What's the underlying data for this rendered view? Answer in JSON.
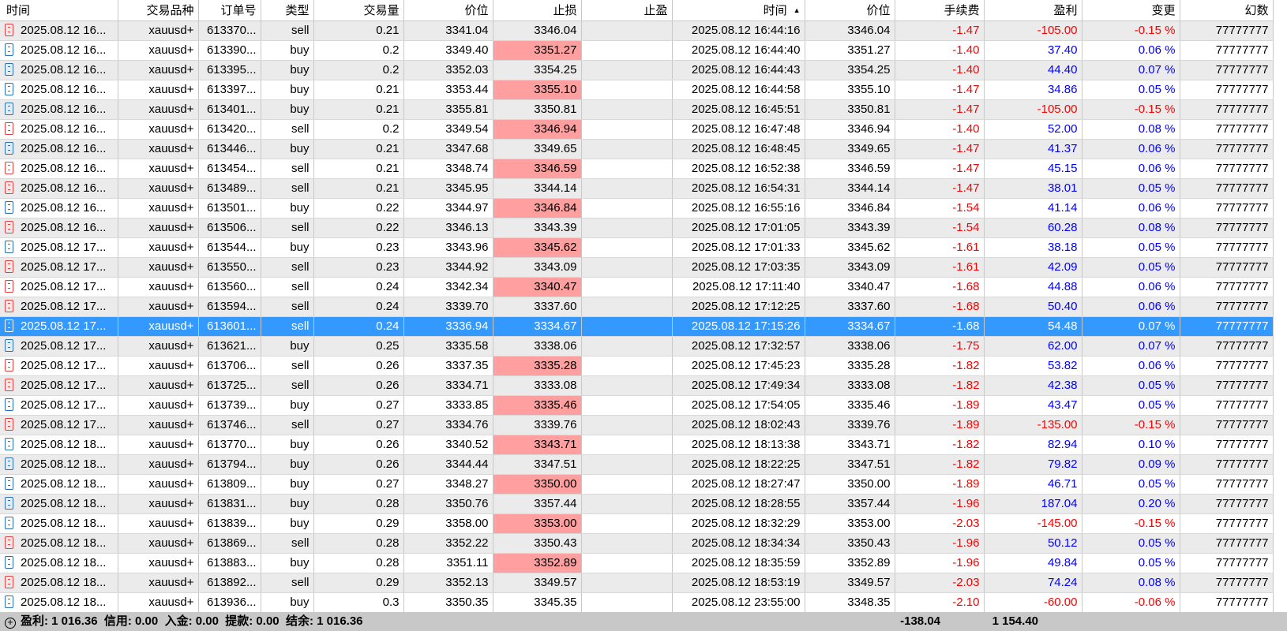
{
  "columns": [
    "时间",
    "交易品种",
    "订单号",
    "类型",
    "交易量",
    "价位",
    "止损",
    "止盈",
    "时间",
    "价位",
    "手续费",
    "盈利",
    "变更",
    "幻数"
  ],
  "sort_indicator": "▲",
  "colors": {
    "stop_loss_bg": "#ff9f9f",
    "selected_bg": "#3399ff",
    "negative": "#ff0000",
    "positive": "#0000ff",
    "alt_row": "#ebebeb"
  },
  "selected_row": 15,
  "rows": [
    [
      "2025.08.12 16...",
      "xauusd+",
      "613370...",
      "sell",
      "0.21",
      "3341.04",
      "3346.04",
      "",
      "2025.08.12 16:44:16",
      "3346.04",
      "-1.47",
      "-105.00",
      "-0.15 %",
      "77777777"
    ],
    [
      "2025.08.12 16...",
      "xauusd+",
      "613390...",
      "buy",
      "0.2",
      "3349.40",
      "3351.27",
      "",
      "2025.08.12 16:44:40",
      "3351.27",
      "-1.40",
      "37.40",
      "0.06 %",
      "77777777"
    ],
    [
      "2025.08.12 16...",
      "xauusd+",
      "613395...",
      "buy",
      "0.2",
      "3352.03",
      "3354.25",
      "",
      "2025.08.12 16:44:43",
      "3354.25",
      "-1.40",
      "44.40",
      "0.07 %",
      "77777777"
    ],
    [
      "2025.08.12 16...",
      "xauusd+",
      "613397...",
      "buy",
      "0.21",
      "3353.44",
      "3355.10",
      "",
      "2025.08.12 16:44:58",
      "3355.10",
      "-1.47",
      "34.86",
      "0.05 %",
      "77777777"
    ],
    [
      "2025.08.12 16...",
      "xauusd+",
      "613401...",
      "buy",
      "0.21",
      "3355.81",
      "3350.81",
      "",
      "2025.08.12 16:45:51",
      "3350.81",
      "-1.47",
      "-105.00",
      "-0.15 %",
      "77777777"
    ],
    [
      "2025.08.12 16...",
      "xauusd+",
      "613420...",
      "sell",
      "0.2",
      "3349.54",
      "3346.94",
      "",
      "2025.08.12 16:47:48",
      "3346.94",
      "-1.40",
      "52.00",
      "0.08 %",
      "77777777"
    ],
    [
      "2025.08.12 16...",
      "xauusd+",
      "613446...",
      "buy",
      "0.21",
      "3347.68",
      "3349.65",
      "",
      "2025.08.12 16:48:45",
      "3349.65",
      "-1.47",
      "41.37",
      "0.06 %",
      "77777777"
    ],
    [
      "2025.08.12 16...",
      "xauusd+",
      "613454...",
      "sell",
      "0.21",
      "3348.74",
      "3346.59",
      "",
      "2025.08.12 16:52:38",
      "3346.59",
      "-1.47",
      "45.15",
      "0.06 %",
      "77777777"
    ],
    [
      "2025.08.12 16...",
      "xauusd+",
      "613489...",
      "sell",
      "0.21",
      "3345.95",
      "3344.14",
      "",
      "2025.08.12 16:54:31",
      "3344.14",
      "-1.47",
      "38.01",
      "0.05 %",
      "77777777"
    ],
    [
      "2025.08.12 16...",
      "xauusd+",
      "613501...",
      "buy",
      "0.22",
      "3344.97",
      "3346.84",
      "",
      "2025.08.12 16:55:16",
      "3346.84",
      "-1.54",
      "41.14",
      "0.06 %",
      "77777777"
    ],
    [
      "2025.08.12 16...",
      "xauusd+",
      "613506...",
      "sell",
      "0.22",
      "3346.13",
      "3343.39",
      "",
      "2025.08.12 17:01:05",
      "3343.39",
      "-1.54",
      "60.28",
      "0.08 %",
      "77777777"
    ],
    [
      "2025.08.12 17...",
      "xauusd+",
      "613544...",
      "buy",
      "0.23",
      "3343.96",
      "3345.62",
      "",
      "2025.08.12 17:01:33",
      "3345.62",
      "-1.61",
      "38.18",
      "0.05 %",
      "77777777"
    ],
    [
      "2025.08.12 17...",
      "xauusd+",
      "613550...",
      "sell",
      "0.23",
      "3344.92",
      "3343.09",
      "",
      "2025.08.12 17:03:35",
      "3343.09",
      "-1.61",
      "42.09",
      "0.05 %",
      "77777777"
    ],
    [
      "2025.08.12 17...",
      "xauusd+",
      "613560...",
      "sell",
      "0.24",
      "3342.34",
      "3340.47",
      "",
      "2025.08.12 17:11:40",
      "3340.47",
      "-1.68",
      "44.88",
      "0.06 %",
      "77777777"
    ],
    [
      "2025.08.12 17...",
      "xauusd+",
      "613594...",
      "sell",
      "0.24",
      "3339.70",
      "3337.60",
      "",
      "2025.08.12 17:12:25",
      "3337.60",
      "-1.68",
      "50.40",
      "0.06 %",
      "77777777"
    ],
    [
      "2025.08.12 17...",
      "xauusd+",
      "613601...",
      "sell",
      "0.24",
      "3336.94",
      "3334.67",
      "",
      "2025.08.12 17:15:26",
      "3334.67",
      "-1.68",
      "54.48",
      "0.07 %",
      "77777777"
    ],
    [
      "2025.08.12 17...",
      "xauusd+",
      "613621...",
      "buy",
      "0.25",
      "3335.58",
      "3338.06",
      "",
      "2025.08.12 17:32:57",
      "3338.06",
      "-1.75",
      "62.00",
      "0.07 %",
      "77777777"
    ],
    [
      "2025.08.12 17...",
      "xauusd+",
      "613706...",
      "sell",
      "0.26",
      "3337.35",
      "3335.28",
      "",
      "2025.08.12 17:45:23",
      "3335.28",
      "-1.82",
      "53.82",
      "0.06 %",
      "77777777"
    ],
    [
      "2025.08.12 17...",
      "xauusd+",
      "613725...",
      "sell",
      "0.26",
      "3334.71",
      "3333.08",
      "",
      "2025.08.12 17:49:34",
      "3333.08",
      "-1.82",
      "42.38",
      "0.05 %",
      "77777777"
    ],
    [
      "2025.08.12 17...",
      "xauusd+",
      "613739...",
      "buy",
      "0.27",
      "3333.85",
      "3335.46",
      "",
      "2025.08.12 17:54:05",
      "3335.46",
      "-1.89",
      "43.47",
      "0.05 %",
      "77777777"
    ],
    [
      "2025.08.12 17...",
      "xauusd+",
      "613746...",
      "sell",
      "0.27",
      "3334.76",
      "3339.76",
      "",
      "2025.08.12 18:02:43",
      "3339.76",
      "-1.89",
      "-135.00",
      "-0.15 %",
      "77777777"
    ],
    [
      "2025.08.12 18...",
      "xauusd+",
      "613770...",
      "buy",
      "0.26",
      "3340.52",
      "3343.71",
      "",
      "2025.08.12 18:13:38",
      "3343.71",
      "-1.82",
      "82.94",
      "0.10 %",
      "77777777"
    ],
    [
      "2025.08.12 18...",
      "xauusd+",
      "613794...",
      "buy",
      "0.26",
      "3344.44",
      "3347.51",
      "",
      "2025.08.12 18:22:25",
      "3347.51",
      "-1.82",
      "79.82",
      "0.09 %",
      "77777777"
    ],
    [
      "2025.08.12 18...",
      "xauusd+",
      "613809...",
      "buy",
      "0.27",
      "3348.27",
      "3350.00",
      "",
      "2025.08.12 18:27:47",
      "3350.00",
      "-1.89",
      "46.71",
      "0.05 %",
      "77777777"
    ],
    [
      "2025.08.12 18...",
      "xauusd+",
      "613831...",
      "buy",
      "0.28",
      "3350.76",
      "3357.44",
      "",
      "2025.08.12 18:28:55",
      "3357.44",
      "-1.96",
      "187.04",
      "0.20 %",
      "77777777"
    ],
    [
      "2025.08.12 18...",
      "xauusd+",
      "613839...",
      "buy",
      "0.29",
      "3358.00",
      "3353.00",
      "",
      "2025.08.12 18:32:29",
      "3353.00",
      "-2.03",
      "-145.00",
      "-0.15 %",
      "77777777"
    ],
    [
      "2025.08.12 18...",
      "xauusd+",
      "613869...",
      "sell",
      "0.28",
      "3352.22",
      "3350.43",
      "",
      "2025.08.12 18:34:34",
      "3350.43",
      "-1.96",
      "50.12",
      "0.05 %",
      "77777777"
    ],
    [
      "2025.08.12 18...",
      "xauusd+",
      "613883...",
      "buy",
      "0.28",
      "3351.11",
      "3352.89",
      "",
      "2025.08.12 18:35:59",
      "3352.89",
      "-1.96",
      "49.84",
      "0.05 %",
      "77777777"
    ],
    [
      "2025.08.12 18...",
      "xauusd+",
      "613892...",
      "sell",
      "0.29",
      "3352.13",
      "3349.57",
      "",
      "2025.08.12 18:53:19",
      "3349.57",
      "-2.03",
      "74.24",
      "0.08 %",
      "77777777"
    ],
    [
      "2025.08.12 18...",
      "xauusd+",
      "613936...",
      "buy",
      "0.3",
      "3350.35",
      "3345.35",
      "",
      "2025.08.12 23:55:00",
      "3348.35",
      "-2.10",
      "-60.00",
      "-0.06 %",
      "77777777"
    ]
  ],
  "stop_loss_hit": [
    true,
    true,
    true,
    true,
    true,
    true,
    true,
    true,
    true,
    true,
    true,
    true,
    true,
    true,
    true,
    true,
    true,
    true,
    true,
    true,
    true,
    true,
    true,
    true,
    true,
    true,
    true,
    true,
    true,
    false
  ],
  "footer": {
    "summary": "盈利: 1 016.36  信用: 0.00  入金: 0.00  提款: 0.00  结余: 1 016.36",
    "total_fee": "-138.04",
    "total_profit": "1 154.40"
  }
}
